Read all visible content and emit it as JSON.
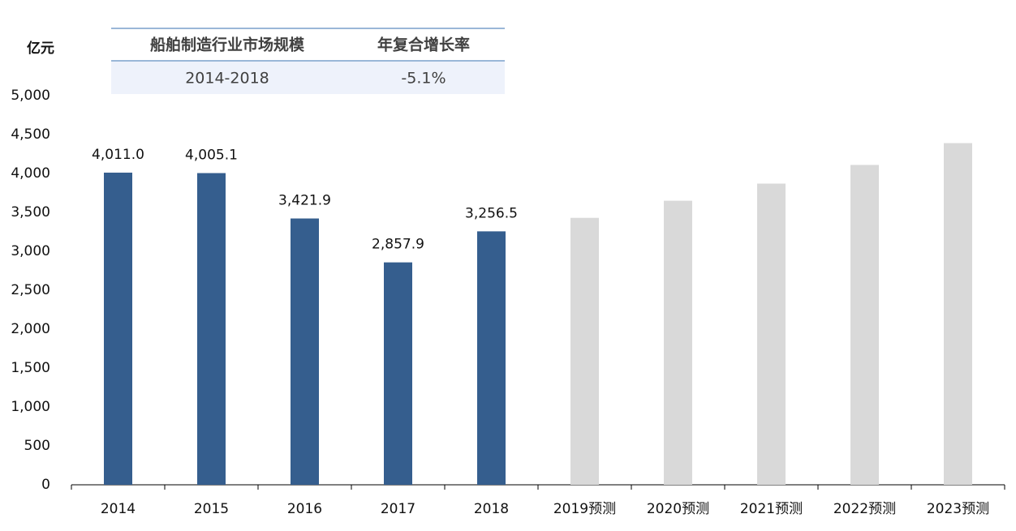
{
  "chart_data": {
    "type": "bar",
    "y_label": "亿元",
    "table": {
      "header": [
        "船舶制造行业市场规模",
        "年复合增长率"
      ],
      "rows": [
        [
          "2014-2018",
          "-5.1%"
        ]
      ]
    },
    "categories": [
      "2014",
      "2015",
      "2016",
      "2017",
      "2018",
      "2019预测",
      "2020预测",
      "2021预测",
      "2022预测",
      "2023预测"
    ],
    "values": [
      4011.0,
      4005.1,
      3421.9,
      2857.9,
      3256.5,
      3430,
      3650,
      3870,
      4110,
      4390
    ],
    "value_labels": [
      "4,011.0",
      "4,005.1",
      "3,421.9",
      "2,857.9",
      "3,256.5",
      null,
      null,
      null,
      null,
      null
    ],
    "colors": [
      "#355e8e",
      "#355e8e",
      "#355e8e",
      "#355e8e",
      "#355e8e",
      "#d9d9d9",
      "#d9d9d9",
      "#d9d9d9",
      "#d9d9d9",
      "#d9d9d9"
    ],
    "ylim": [
      0,
      5000
    ],
    "yticks": [
      0,
      500,
      {
        "value": 1000,
        "label": "1,000"
      },
      {
        "value": 1500,
        "label": "1,500"
      },
      {
        "value": 2000,
        "label": "2,000"
      },
      {
        "value": 2500,
        "label": "2,500"
      },
      {
        "value": 3000,
        "label": "3,000"
      },
      {
        "value": 3500,
        "label": "3,500"
      },
      {
        "value": 4000,
        "label": "4,000"
      },
      {
        "value": 4500,
        "label": "4,500"
      },
      {
        "value": 5000,
        "label": "5,000"
      }
    ],
    "grid": false
  }
}
